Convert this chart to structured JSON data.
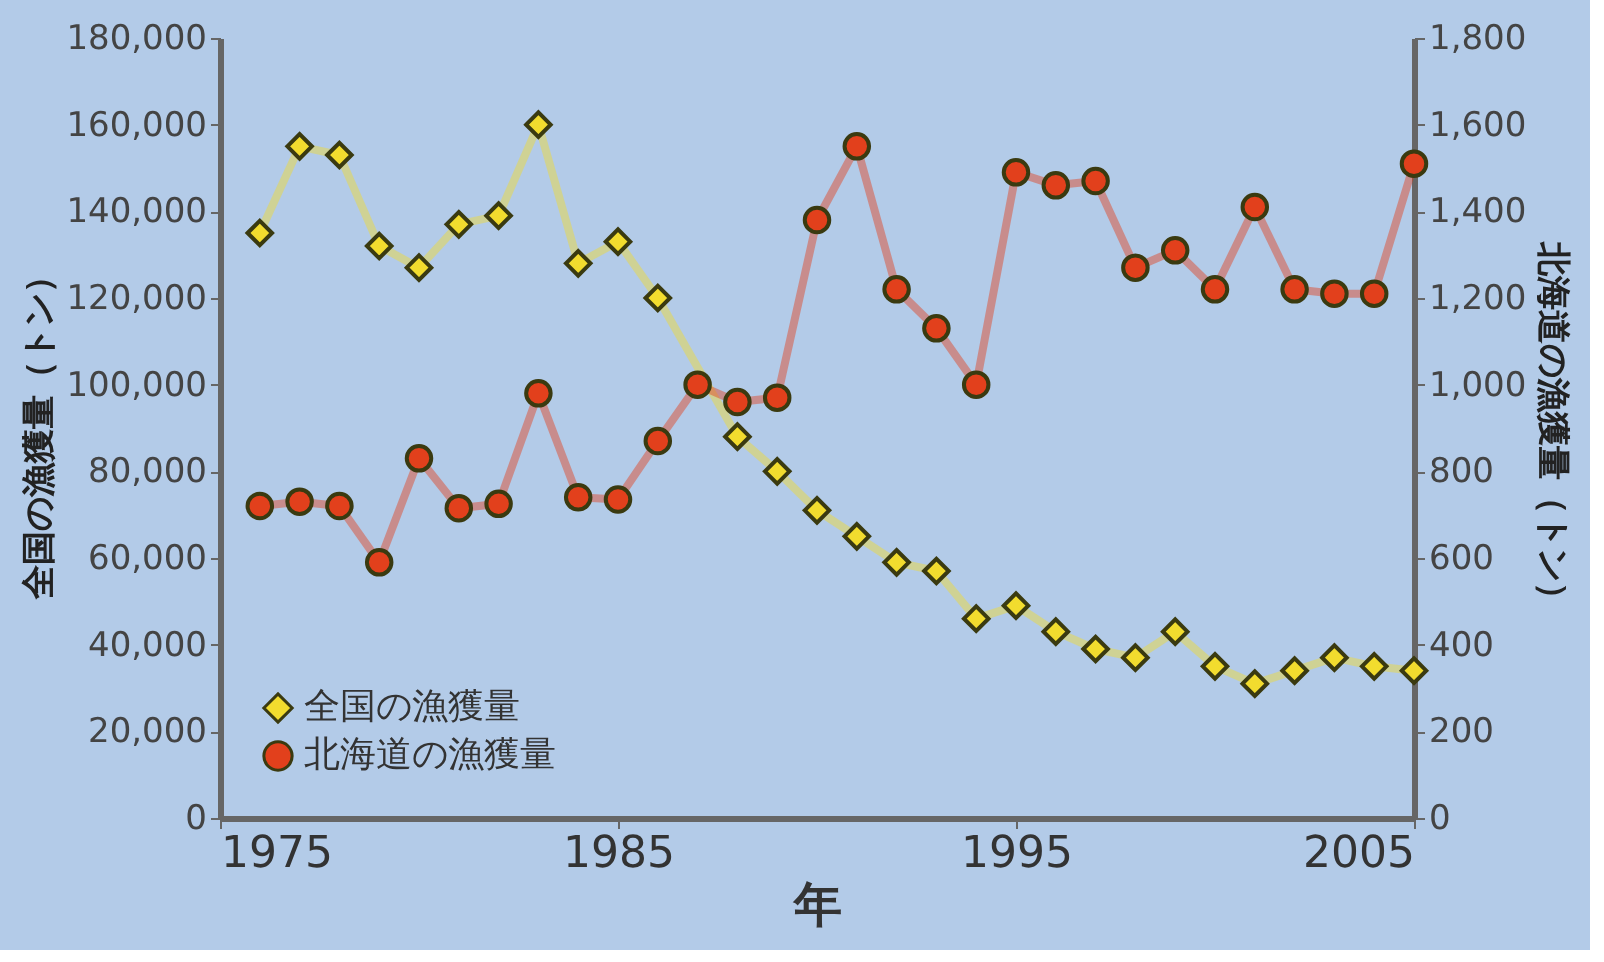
{
  "chart_data": {
    "type": "line",
    "xlabel": "年",
    "ylabel": "全国の漁獲量（トン）",
    "y2label": "北海道の漁獲量（トン）",
    "x": [
      1976,
      1977,
      1978,
      1979,
      1980,
      1981,
      1982,
      1983,
      1984,
      1985,
      1986,
      1987,
      1988,
      1989,
      1990,
      1991,
      1992,
      1993,
      1994,
      1995,
      1996,
      1997,
      1998,
      1999,
      2000,
      2001,
      2002,
      2003,
      2004,
      2005
    ],
    "series": [
      {
        "name": "全国の漁獲量",
        "color": "#f2dc2e",
        "marker": "diamond",
        "values": [
          135000,
          155000,
          153000,
          132000,
          127000,
          137000,
          139000,
          160000,
          128000,
          133000,
          120000,
          null,
          88000,
          80000,
          71000,
          65000,
          59000,
          57000,
          46000,
          49000,
          43000,
          39000,
          37000,
          43000,
          35000,
          31000,
          34000,
          37000,
          35000,
          34000
        ]
      },
      {
        "name": "北海道の漁獲量",
        "color": "#e2401c",
        "marker": "circle",
        "axis": "y2",
        "values": [
          720,
          730,
          720,
          590,
          830,
          715,
          725,
          980,
          740,
          735,
          870,
          1000,
          960,
          970,
          1380,
          1550,
          1220,
          1130,
          1000,
          1490,
          1460,
          1470,
          1270,
          1310,
          1220,
          1410,
          1220,
          1210,
          1210,
          1510
        ]
      }
    ],
    "xlim": [
      1975,
      2005
    ],
    "xticks": [
      1975,
      1985,
      1995,
      2005
    ],
    "ylim": [
      0,
      180000
    ],
    "yticks": [
      0,
      {
        "value": 20000,
        "label": "20,000"
      },
      {
        "value": 40000,
        "label": "40,000"
      },
      {
        "value": 60000,
        "label": "60,000"
      },
      {
        "value": 80000,
        "label": "80,000"
      },
      {
        "value": 100000,
        "label": "100,000"
      },
      {
        "value": 120000,
        "label": "120,000"
      },
      {
        "value": 140000,
        "label": "140,000"
      },
      {
        "value": 160000,
        "label": "160,000"
      },
      {
        "value": 180000,
        "label": "180,000"
      }
    ],
    "y2lim": [
      0,
      1800
    ],
    "y2ticks": [
      0,
      200,
      400,
      600,
      800,
      {
        "value": 1000,
        "label": "1,000"
      },
      {
        "value": 1200,
        "label": "1,200"
      },
      {
        "value": 1400,
        "label": "1,400"
      },
      {
        "value": 1600,
        "label": "1,600"
      },
      {
        "value": 1800,
        "label": "1,800"
      }
    ],
    "legend": "bottom left",
    "grid": false,
    "line_style": "solid"
  }
}
